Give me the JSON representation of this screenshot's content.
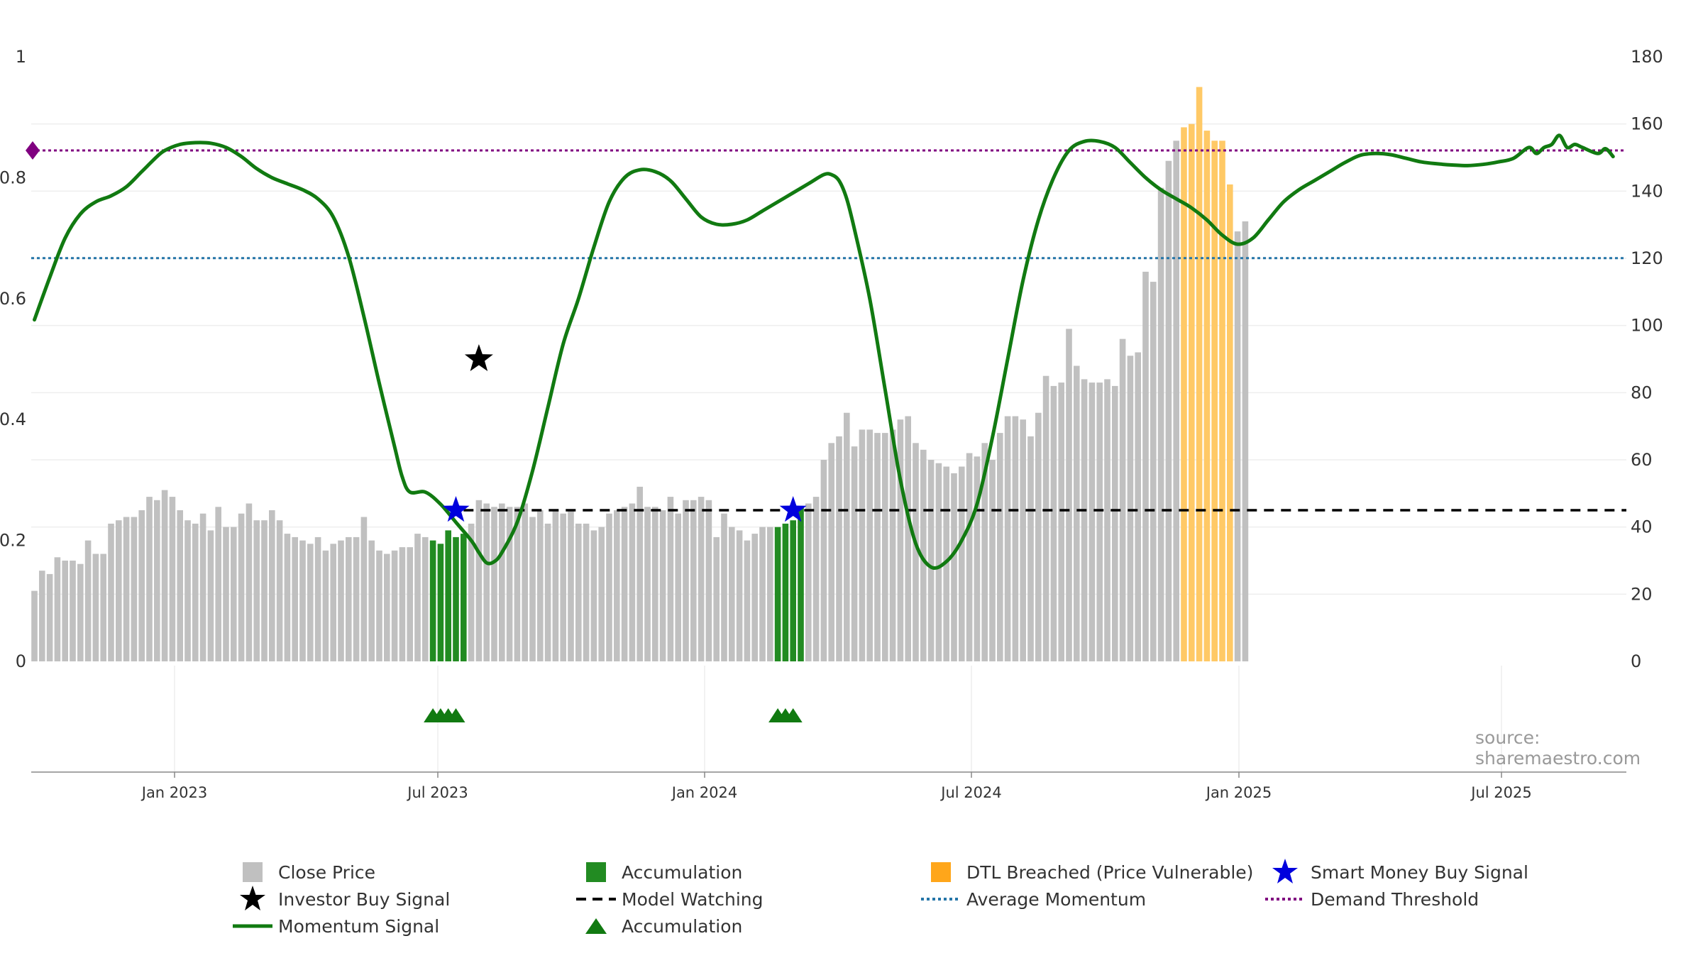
{
  "chart_data": {
    "type": "bar+line",
    "title": "",
    "left_axis": {
      "ylim": [
        0,
        1
      ],
      "ticks": [
        "0",
        "0.2",
        "0.4",
        "0.6",
        "0.8",
        "1"
      ]
    },
    "right_axis": {
      "ylim": [
        0,
        180
      ],
      "ticks": [
        "0",
        "20",
        "40",
        "60",
        "80",
        "100",
        "120",
        "140",
        "160",
        "180"
      ]
    },
    "x_axis": {
      "ticks": [
        "Jan 2023",
        "Jul 2023",
        "Jan 2024",
        "Jul 2024",
        "Jan 2025",
        "Jul 2025"
      ]
    },
    "close_price": [
      21,
      27,
      26,
      31,
      30,
      30,
      29,
      36,
      32,
      32,
      41,
      42,
      43,
      43,
      45,
      49,
      48,
      51,
      49,
      45,
      42,
      41,
      44,
      39,
      46,
      40,
      40,
      44,
      47,
      42,
      42,
      45,
      42,
      38,
      37,
      36,
      35,
      37,
      33,
      35,
      36,
      37,
      37,
      43,
      36,
      33,
      32,
      33,
      34,
      34,
      38,
      37,
      36,
      35,
      39,
      37,
      38,
      41,
      48,
      47,
      46,
      47,
      46,
      46,
      47,
      43,
      45,
      41,
      45,
      44,
      45,
      41,
      41,
      39,
      40,
      44,
      45,
      46,
      47,
      52,
      46,
      46,
      45,
      49,
      44,
      48,
      48,
      49,
      48,
      37,
      44,
      40,
      39,
      36,
      38,
      40,
      40,
      40,
      41,
      42,
      46,
      47,
      49,
      60,
      65,
      67,
      74,
      64,
      69,
      69,
      68,
      68,
      69,
      72,
      73,
      65,
      63,
      60,
      59,
      58,
      56,
      58,
      62,
      61,
      65,
      60,
      68,
      73,
      73,
      72,
      67,
      74,
      85,
      82,
      83,
      99,
      88,
      84,
      83,
      83,
      84,
      82,
      96,
      91,
      92,
      116,
      113,
      141,
      149,
      155,
      159,
      160,
      171,
      158,
      155,
      155,
      142,
      128,
      131
    ],
    "accumulation_bars": [
      52,
      53,
      54,
      55,
      56,
      97,
      98,
      99,
      100
    ],
    "dtl_breached_bars": [
      150,
      151,
      152,
      153,
      154,
      155,
      156
    ],
    "momentum_signal": [
      [
        0,
        0.565
      ],
      [
        2,
        0.635
      ],
      [
        4,
        0.7
      ],
      [
        6,
        0.74
      ],
      [
        8,
        0.76
      ],
      [
        10,
        0.77
      ],
      [
        12,
        0.785
      ],
      [
        14,
        0.81
      ],
      [
        16,
        0.835
      ],
      [
        17,
        0.845
      ],
      [
        19,
        0.855
      ],
      [
        21,
        0.858
      ],
      [
        23,
        0.857
      ],
      [
        25,
        0.85
      ],
      [
        27,
        0.835
      ],
      [
        29,
        0.815
      ],
      [
        31,
        0.8
      ],
      [
        33,
        0.79
      ],
      [
        35,
        0.78
      ],
      [
        37,
        0.765
      ],
      [
        39,
        0.735
      ],
      [
        41,
        0.67
      ],
      [
        43,
        0.57
      ],
      [
        45,
        0.46
      ],
      [
        47,
        0.355
      ],
      [
        48,
        0.305
      ],
      [
        49,
        0.28
      ],
      [
        51,
        0.28
      ],
      [
        53,
        0.26
      ],
      [
        55,
        0.23
      ],
      [
        57,
        0.2
      ],
      [
        58,
        0.18
      ],
      [
        59,
        0.163
      ],
      [
        60,
        0.165
      ],
      [
        61,
        0.18
      ],
      [
        63,
        0.23
      ],
      [
        65,
        0.315
      ],
      [
        67,
        0.42
      ],
      [
        69,
        0.525
      ],
      [
        71,
        0.6
      ],
      [
        73,
        0.685
      ],
      [
        75,
        0.76
      ],
      [
        77,
        0.8
      ],
      [
        79,
        0.813
      ],
      [
        81,
        0.81
      ],
      [
        83,
        0.795
      ],
      [
        85,
        0.765
      ],
      [
        87,
        0.735
      ],
      [
        89,
        0.723
      ],
      [
        91,
        0.723
      ],
      [
        93,
        0.73
      ],
      [
        95,
        0.745
      ],
      [
        97,
        0.76
      ],
      [
        99,
        0.775
      ],
      [
        101,
        0.79
      ],
      [
        103,
        0.805
      ],
      [
        104,
        0.805
      ],
      [
        105,
        0.795
      ],
      [
        106,
        0.765
      ],
      [
        107,
        0.715
      ],
      [
        109,
        0.6
      ],
      [
        111,
        0.45
      ],
      [
        113,
        0.3
      ],
      [
        115,
        0.195
      ],
      [
        117,
        0.156
      ],
      [
        119,
        0.165
      ],
      [
        121,
        0.2
      ],
      [
        123,
        0.26
      ],
      [
        125,
        0.37
      ],
      [
        127,
        0.5
      ],
      [
        129,
        0.63
      ],
      [
        131,
        0.73
      ],
      [
        133,
        0.8
      ],
      [
        135,
        0.845
      ],
      [
        137,
        0.86
      ],
      [
        139,
        0.86
      ],
      [
        141,
        0.85
      ],
      [
        143,
        0.825
      ],
      [
        145,
        0.8
      ],
      [
        147,
        0.78
      ],
      [
        149,
        0.765
      ],
      [
        151,
        0.75
      ],
      [
        153,
        0.73
      ],
      [
        155,
        0.705
      ],
      [
        157,
        0.69
      ],
      [
        159,
        0.7
      ],
      [
        161,
        0.73
      ],
      [
        163,
        0.76
      ],
      [
        165,
        0.78
      ],
      [
        167,
        0.795
      ],
      [
        169,
        0.81
      ],
      [
        171,
        0.825
      ],
      [
        173,
        0.837
      ],
      [
        175,
        0.84
      ],
      [
        177,
        0.838
      ],
      [
        179,
        0.832
      ],
      [
        181,
        0.826
      ],
      [
        183,
        0.823
      ],
      [
        185,
        0.821
      ],
      [
        187,
        0.82
      ],
      [
        189,
        0.822
      ],
      [
        191,
        0.826
      ],
      [
        193,
        0.832
      ],
      [
        195,
        0.85
      ],
      [
        196,
        0.84
      ],
      [
        197,
        0.85
      ],
      [
        198,
        0.855
      ],
      [
        199,
        0.87
      ],
      [
        200,
        0.85
      ],
      [
        201,
        0.855
      ],
      [
        202,
        0.85
      ],
      [
        204,
        0.84
      ],
      [
        205,
        0.848
      ],
      [
        206,
        0.835
      ]
    ],
    "average_momentum": 0.667,
    "demand_threshold": 0.845,
    "model_watching_level": 0.25,
    "accumulation_markers": [
      52,
      53,
      54,
      55,
      97,
      98,
      99
    ],
    "investor_buy_signal": {
      "index": 58,
      "value": 0.5
    },
    "smart_money_buy_signals": [
      {
        "index": 55,
        "value": 0.25
      },
      {
        "index": 99,
        "value": 0.25
      }
    ],
    "colors": {
      "close_price": "#c0c0c0",
      "accumulation": "#228b22",
      "dtl_breached": "#ffc966",
      "momentum": "#117a11",
      "average_momentum": "#2475a8",
      "demand_threshold": "#800080",
      "model_watching": "#000000",
      "smart_money": "#0000dd",
      "investor": "#000000"
    }
  },
  "source": "source: sharemaestro.com",
  "legend": [
    {
      "label": "Close Price",
      "symbol": "gray-square"
    },
    {
      "label": "Accumulation",
      "symbol": "green-square"
    },
    {
      "label": "DTL Breached (Price Vulnerable)",
      "symbol": "orange-square"
    },
    {
      "label": "Smart Money Buy Signal",
      "symbol": "blue-star"
    },
    {
      "label": "Investor Buy Signal",
      "symbol": "black-star"
    },
    {
      "label": "Model Watching",
      "symbol": "black-dashed-line"
    },
    {
      "label": "Average Momentum",
      "symbol": "blue-dotted-line"
    },
    {
      "label": "Demand Threshold",
      "symbol": "purple-dotted-line"
    },
    {
      "label": "Momentum Signal",
      "symbol": "green-line"
    },
    {
      "label": "Accumulation",
      "symbol": "green-triangle"
    }
  ]
}
